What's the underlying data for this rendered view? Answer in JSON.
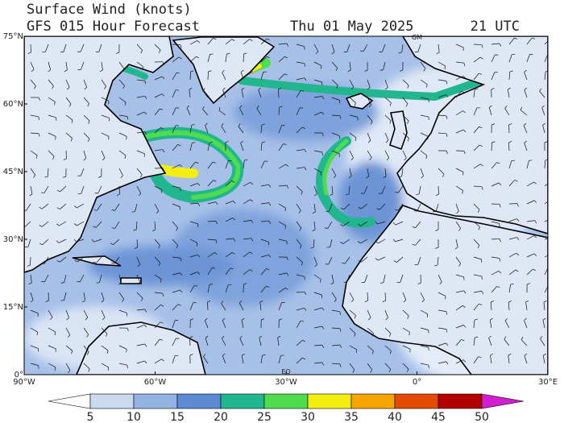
{
  "header": {
    "title": "Surface Wind (knots)",
    "subtitle": "GFS 015 Hour Forecast",
    "date": "Thu 01 May 2025",
    "time": "21 UTC"
  },
  "map": {
    "latlim": [
      0,
      75
    ],
    "lonlim": [
      -90,
      30
    ],
    "lat_ticks": [
      {
        "value": 75,
        "label": "75°N"
      },
      {
        "value": 60,
        "label": "60°N"
      },
      {
        "value": 45,
        "label": "45°N"
      },
      {
        "value": 30,
        "label": "30°N"
      },
      {
        "value": 15,
        "label": "15°N"
      },
      {
        "value": 0,
        "label": "0°"
      }
    ],
    "lon_ticks": [
      {
        "value": -90,
        "label": "90°W"
      },
      {
        "value": -60,
        "label": "60°W"
      },
      {
        "value": -30,
        "label": "30°W"
      },
      {
        "value": 0,
        "label": "0°"
      },
      {
        "value": 30,
        "label": "30°E"
      }
    ],
    "equator_label": "EQ",
    "greenwich_label": "GM"
  },
  "colorbar": {
    "ticks": [
      5,
      10,
      15,
      20,
      25,
      30,
      35,
      40,
      45,
      50
    ],
    "colors": [
      "#ffffff",
      "#c9d9ef",
      "#93b4e3",
      "#5c8bd3",
      "#22b68e",
      "#4fdc4f",
      "#f2ee10",
      "#f5a400",
      "#e34b00",
      "#b20000",
      "#d21fd2"
    ]
  }
}
